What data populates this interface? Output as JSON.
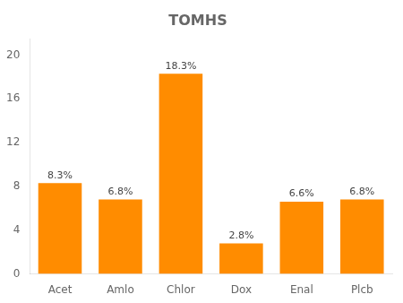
{
  "chart_data": {
    "type": "bar",
    "title": "TOMHS",
    "categories": [
      "Acet",
      "Amlo",
      "Chlor",
      "Dox",
      "Enal",
      "Plcb"
    ],
    "values": [
      8.3,
      6.8,
      18.3,
      2.8,
      6.6,
      6.8
    ],
    "value_labels": [
      "8.3%",
      "6.8%",
      "18.3%",
      "2.8%",
      "6.6%",
      "6.8%"
    ],
    "color": "#FF8C00",
    "ylim": [
      0,
      21.5
    ],
    "yticks": [
      0,
      4,
      8,
      12,
      16,
      20
    ],
    "grid": false,
    "data_labels": true
  }
}
